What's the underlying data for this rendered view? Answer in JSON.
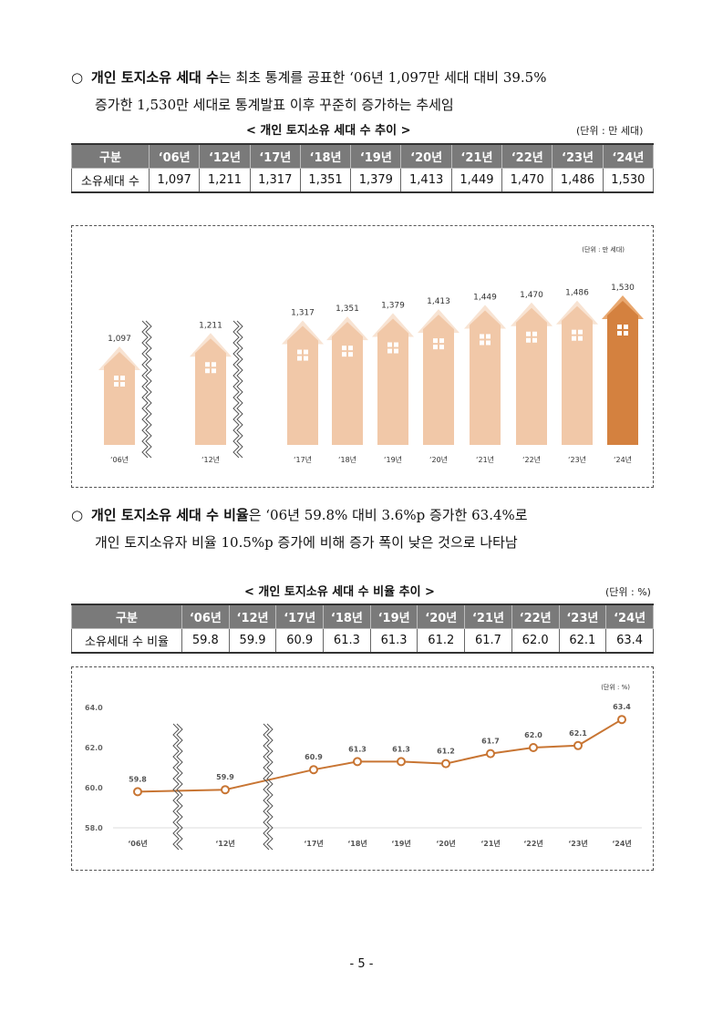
{
  "para1": {
    "bullet": "○",
    "bold": "개인 토지소유 세대 수",
    "line1_rest": "는 최초 통계를 공표한 ‘06년 1,097만 세대 대비 39.5%",
    "line2": "증가한 1,530만 세대로 통계발표 이후 꾸준히 증가하는 추세임"
  },
  "table1": {
    "caption": "< 개인 토지소유 세대 수 추이 >",
    "unit": "(단위 : 만 세대)",
    "header_label": "구분",
    "row_label": "소유세대 수",
    "years": [
      "‘06년",
      "‘12년",
      "‘17년",
      "‘18년",
      "‘19년",
      "‘20년",
      "‘21년",
      "‘22년",
      "‘23년",
      "‘24년"
    ],
    "values": [
      "1,097",
      "1,211",
      "1,317",
      "1,351",
      "1,379",
      "1,413",
      "1,449",
      "1,470",
      "1,486",
      "1,530"
    ]
  },
  "chart1": {
    "unit": "(단위 : 만 세대)",
    "type": "bar",
    "categories": [
      "‘06년",
      "‘12년",
      "‘17년",
      "‘18년",
      "‘19년",
      "‘20년",
      "‘21년",
      "‘22년",
      "‘23년",
      "‘24년"
    ],
    "values": [
      1097,
      1211,
      1317,
      1351,
      1379,
      1413,
      1449,
      1470,
      1486,
      1530
    ],
    "labels": [
      "1,097",
      "1,211",
      "1,317",
      "1,351",
      "1,379",
      "1,413",
      "1,449",
      "1,470",
      "1,486",
      "1,530"
    ],
    "colors": {
      "normal": "#f1c8a8",
      "highlight": "#d4813f",
      "window": "#ffffff"
    }
  },
  "para2": {
    "bullet": "○",
    "bold": "개인 토지소유 세대 수 비율",
    "line1_rest": "은 ‘06년 59.8% 대비 3.6%p 증가한 63.4%로",
    "line2": "개인 토지소유자 비율 10.5%p 증가에 비해 증가 폭이 낮은 것으로 나타남"
  },
  "table2": {
    "caption": "< 개인 토지소유 세대 수 비율 추이 >",
    "unit": "(단위 : %)",
    "header_label": "구분",
    "row_label": "소유세대 수 비율",
    "years": [
      "‘06년",
      "‘12년",
      "‘17년",
      "‘18년",
      "‘19년",
      "‘20년",
      "‘21년",
      "‘22년",
      "‘23년",
      "‘24년"
    ],
    "values": [
      "59.8",
      "59.9",
      "60.9",
      "61.3",
      "61.3",
      "61.2",
      "61.7",
      "62.0",
      "62.1",
      "63.4"
    ]
  },
  "chart_data": {
    "type": "line",
    "unit": "(단위 : %)",
    "categories": [
      "‘06년",
      "‘12년",
      "‘17년",
      "‘18년",
      "‘19년",
      "‘20년",
      "‘21년",
      "‘22년",
      "‘23년",
      "‘24년"
    ],
    "values": [
      59.8,
      59.9,
      60.9,
      61.3,
      61.3,
      61.2,
      61.7,
      62.0,
      62.1,
      63.4
    ],
    "labels": [
      "59.8",
      "59.9",
      "60.9",
      "61.3",
      "61.3",
      "61.2",
      "61.7",
      "62.0",
      "62.1",
      "63.4"
    ],
    "yticks": [
      "64.0",
      "62.0",
      "60.0",
      "58.0"
    ],
    "ylim": [
      58,
      64
    ],
    "color": "#c87533"
  },
  "page_number": "- 5 -"
}
